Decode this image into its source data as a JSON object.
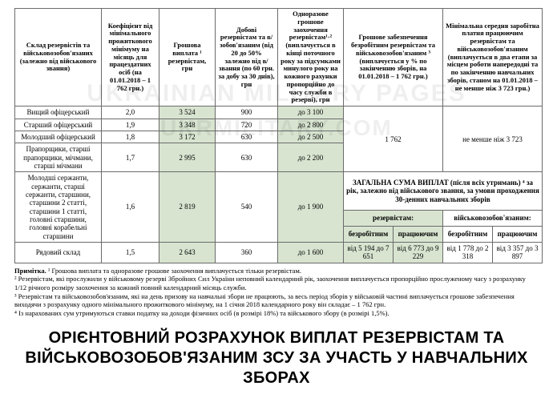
{
  "table": {
    "headers": {
      "rank": "Склад резервістів та військовозобов'язаних (залежно від військового звання)",
      "coef": "Коефіцієнт від мінімального прожиткового мінімуму на місяць для працездатних осіб (на 01.01.2018 – 1 762 грн.)",
      "pay": "Грошова виплата ¹ резервістам, грн",
      "daily": "Добові резервістам та в/зобов'язаним (від 20 до 50% залежно від в/звання (по 60 грн. за добу за 30 днів), грн",
      "once": "Одноразове грошове заохочення резервістам¹·² (виплачується в кінці поточного року за підсумками минулого року на кожного рахунки пропорційно до часу служби в резерві), грн",
      "sec": "Грошове забезпечення безробітним резервістам та військовозобов'язаним ³ (виплачується у % по закінченню зборів, на 01.01.2018 – 1 762 грн.)",
      "avg": "Мінімальна середня заробітна платня працюючим резервістам та військовозобов'язаним (виплачується в два етапи за місцем роботи напередодні та по закінченню навчальних зборів, станом на 01.01.2018 – не менше ніж 3 723 грн.)"
    },
    "rows": [
      {
        "rank": "Вищий офіцерський",
        "coef": "2,0",
        "pay": "3 524",
        "daily": "900",
        "once": "до 3 100"
      },
      {
        "rank": "Старший офіцерський",
        "coef": "1,9",
        "pay": "3 348",
        "daily": "720",
        "once": "до 2 800"
      },
      {
        "rank": "Молодший офіцерський",
        "coef": "1,8",
        "pay": "3 172",
        "daily": "630",
        "once": "до 2 500"
      },
      {
        "rank": "Прапорщики, старші прапорщики, мічмани, старші мічмани",
        "coef": "1,7",
        "pay": "2 995",
        "daily": "630",
        "once": "до 2 200"
      },
      {
        "rank": "Молодші сержанти, сержанти, старші сержанти, старшини, старшини 2 статті, старшини 1 статті, головні старшини, головні корабельні старшини",
        "coef": "1,6",
        "pay": "2 819",
        "daily": "540",
        "once": "до 1 900"
      },
      {
        "rank": "Рядовий склад",
        "coef": "1,5",
        "pay": "2 643",
        "daily": "360",
        "once": "до 1 600"
      }
    ],
    "sec_value": "1 762",
    "avg_value": "не менше ніж 3 723",
    "summary": {
      "title": "ЗАГАЛЬНА СУМА ВИПЛАТ (після всіх утримань) ⁴ за рік, залежно від військового звання, за умови проходження 30-денних навчальних зборів",
      "col_a": "резервістам:",
      "col_b": "військовозобов'язаним:",
      "sub1": "безробітним",
      "sub2": "працюючим",
      "a1": "від 5 194 до 7 651",
      "a2": "від 6 773 до 9 229",
      "b1": "від 1 778 до 2 318",
      "b2": "від 3 357 до 3 897"
    }
  },
  "notes": {
    "lead": "Примітка.",
    "n1": "¹ Грошова виплата та одноразове грошове заохочення виплачується тільки резервістам.",
    "n2": "² Резервістам, які прослужили у військовому резерві Збройних Сил України неповний календарний рік, заохочення виплачується пропорційно прослуженому часу з розрахунку 1/12 річного розміру заохочення за кожний повний календарний місяць служби.",
    "n3": "³ Резервістам та військовозобов'язаним, які на день призову на навчальні збори не працюють, за весь період зборів у військовій частині виплачується грошове забезпечення виходячи з розрахунку одного мінімального прожиткового мінімуму, на 1 січня 2018 календарного року він складає – 1 762 грн.",
    "n4": "⁴ Із нарахованих сум утримуються ставки податку на доходи фізичних осіб (в розмірі 18%) та військового збору (в розмірі 1,5%)."
  },
  "headline": "ОРІЄНТОВНИЙ РОЗРАХУНОК ВИПЛАТ РЕЗЕРВІСТАМ ТА ВІЙСЬКОВОЗОБОВ'ЯЗАНИМ ЗСУ ЗА УЧАСТЬ У НАВЧАЛЬНИХ ЗБОРАХ",
  "watermark": {
    "l1": "UKRAINIAN MILITARY PAGES",
    "l2": "UKRMILITARY.COM"
  }
}
